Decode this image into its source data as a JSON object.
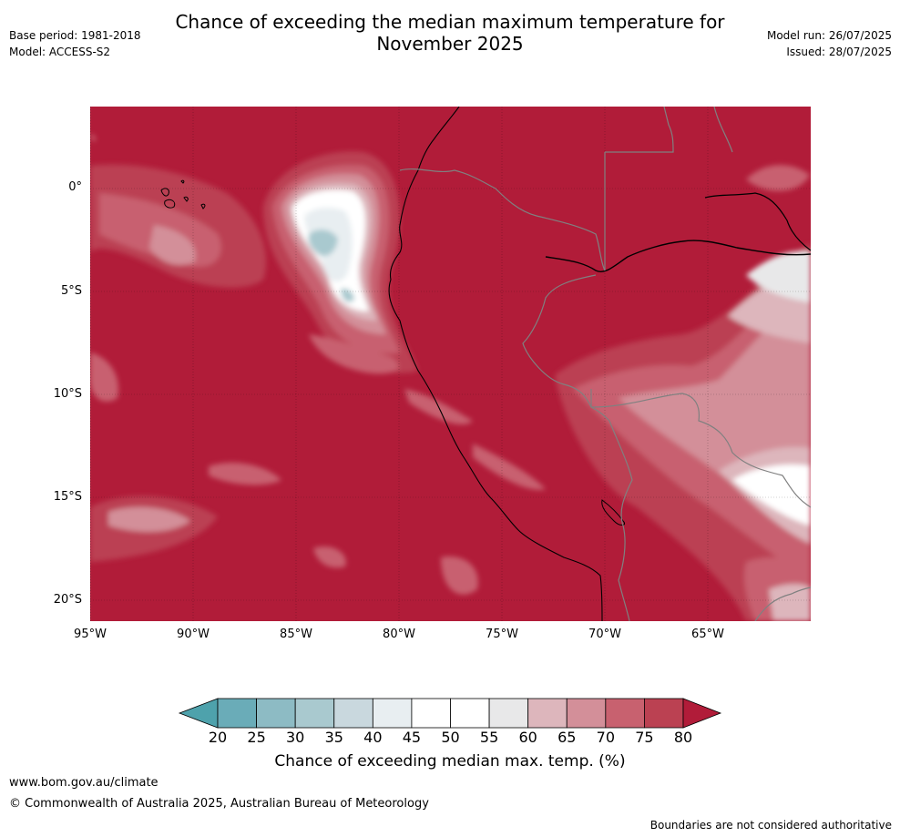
{
  "header": {
    "title_line1": "Chance of exceeding the median maximum temperature for",
    "title_line2": "November 2025",
    "base_period": "Base period: 1981-2018",
    "model": "Model: ACCESS-S2",
    "model_run": "Model run: 26/07/2025",
    "issued": "Issued: 28/07/2025"
  },
  "map": {
    "lat_ticks": [
      "0°",
      "5°S",
      "10°S",
      "15°S",
      "20°S"
    ],
    "lon_ticks": [
      "95°W",
      "90°W",
      "85°W",
      "80°W",
      "75°W",
      "70°W",
      "65°W"
    ],
    "colors": {
      "background_80plus": "#b11c39",
      "coast": "#000000",
      "border": "#808080"
    }
  },
  "colorbar": {
    "label": "Chance of exceeding median max. temp. (%)",
    "ticks": [
      "20",
      "25",
      "30",
      "35",
      "40",
      "45",
      "50",
      "55",
      "60",
      "65",
      "70",
      "75",
      "80"
    ],
    "colors": [
      "#4ea2ac",
      "#6aacb8",
      "#8dbbc4",
      "#a9c9cf",
      "#c9d8de",
      "#e8eef1",
      "#ffffff",
      "#ffffff",
      "#e8e8e9",
      "#ddb6bc",
      "#d38f99",
      "#c8616f",
      "#bb4152",
      "#b11c39"
    ]
  },
  "footer": {
    "website": "www.bom.gov.au/climate",
    "copyright": "© Commonwealth of Australia 2025, Australian Bureau of Meteorology",
    "disclaimer": "Boundaries are not considered authoritative"
  }
}
